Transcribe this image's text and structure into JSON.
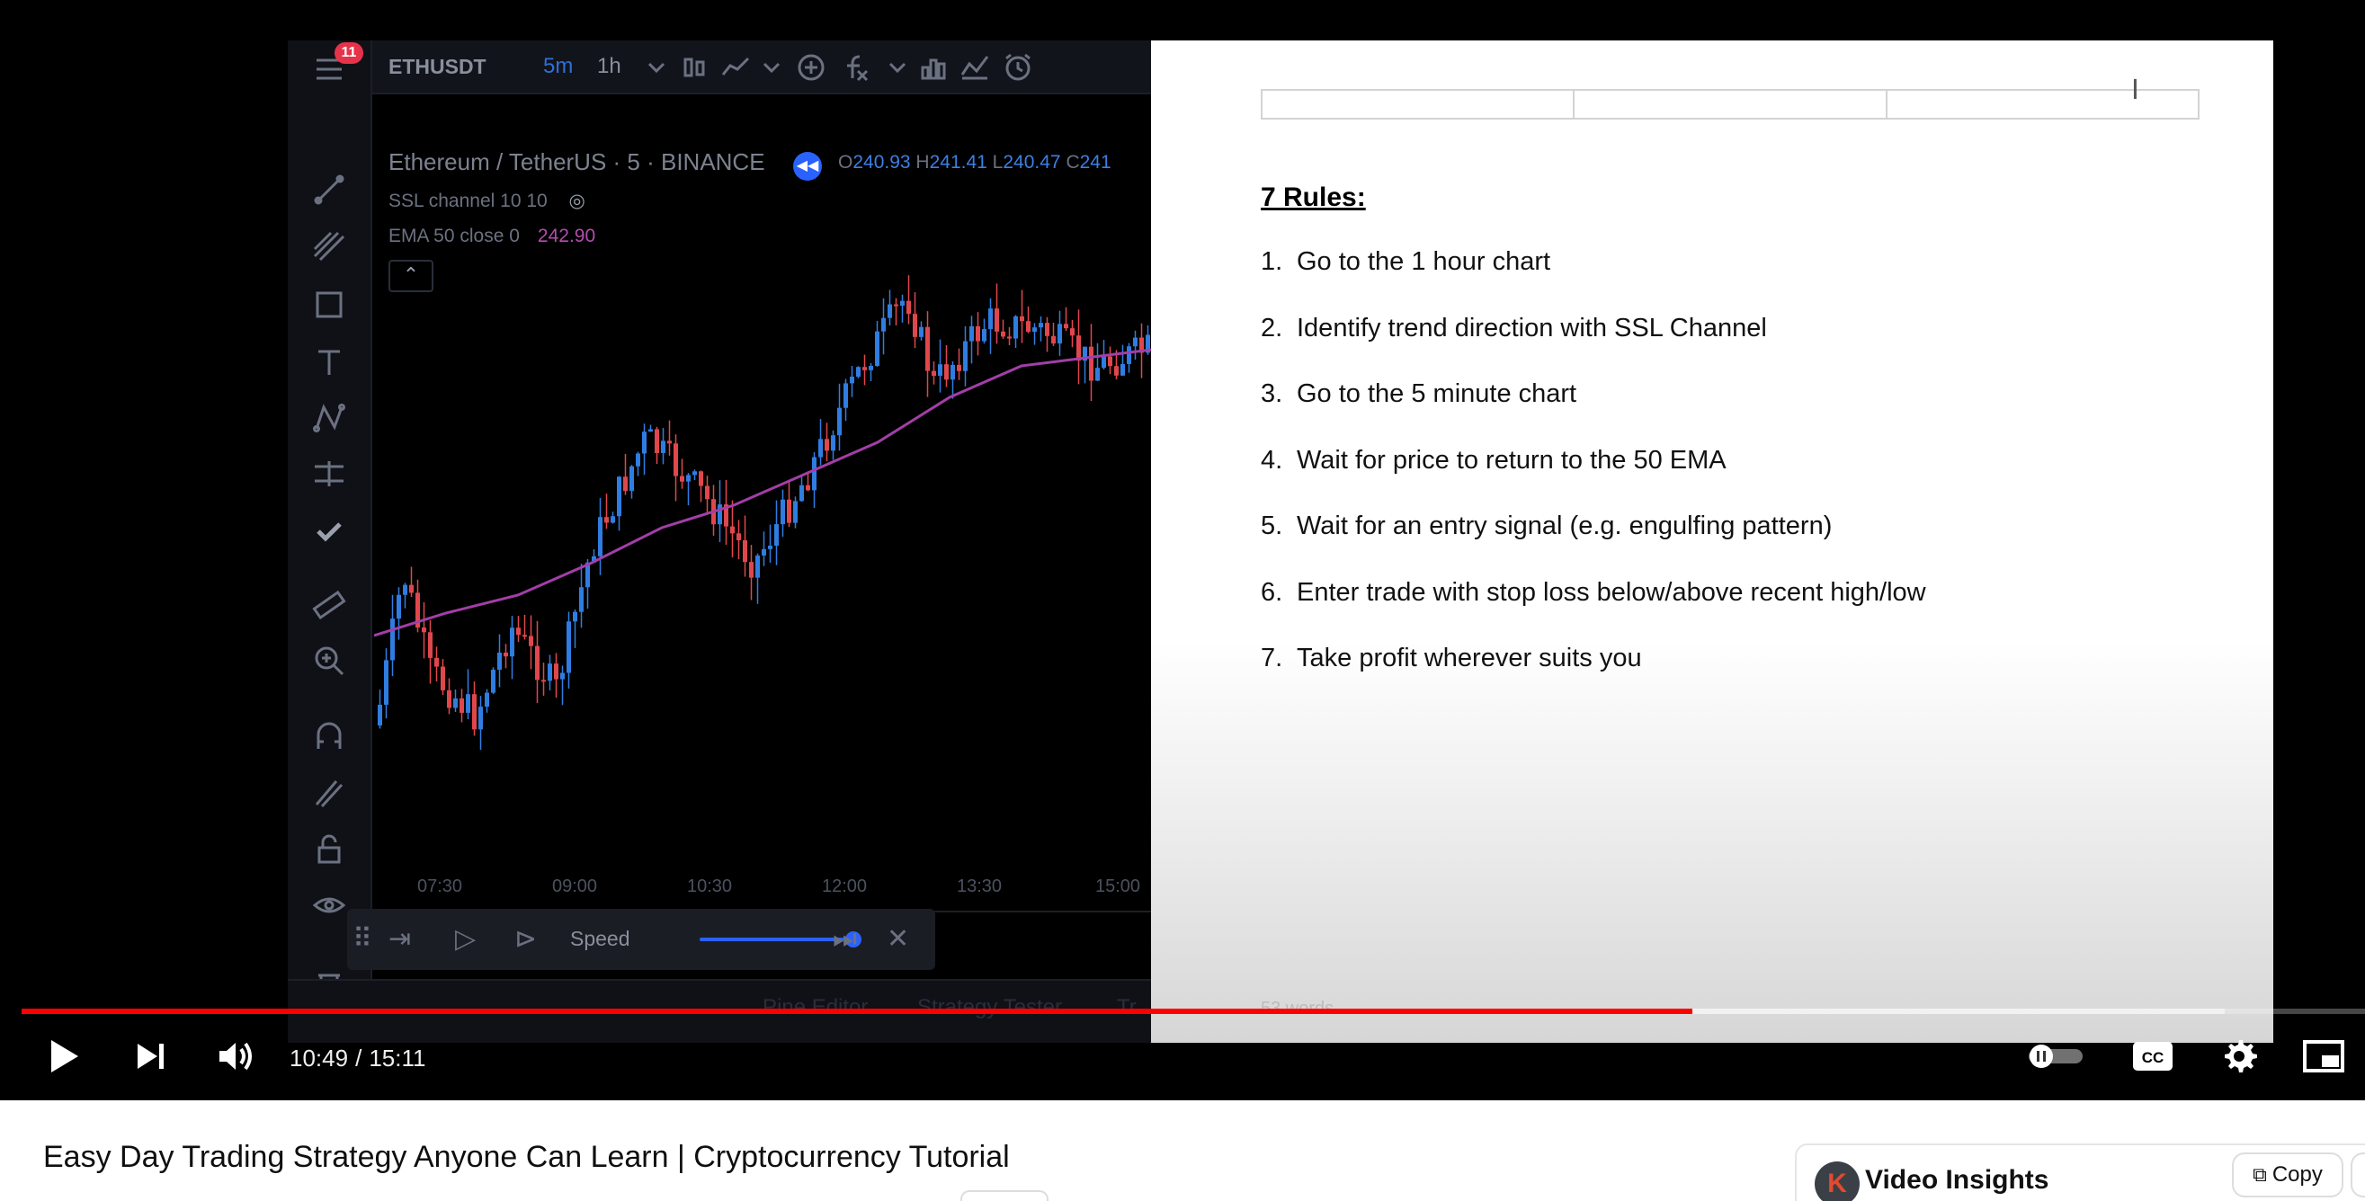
{
  "tradingview": {
    "menu_badge": "11",
    "symbol": "ETHUSDT",
    "intervals": [
      "5m",
      "1h"
    ],
    "legend_main": "Ethereum / TetherUS · 5 · BINANCE",
    "ohlc": {
      "o_key": "O",
      "o": "240.93",
      "h_key": "H",
      "h": "241.41",
      "l_key": "L",
      "l": "240.47",
      "c_key": "C",
      "c": "241"
    },
    "indicator_1": "SSL channel 10 10",
    "indicator_2": "EMA 50 close 0",
    "ema_value": "242.90",
    "time_ticks": [
      "07:30",
      "09:00",
      "10:30",
      "12:00",
      "13:30",
      "15:00"
    ],
    "replay": {
      "speed_label": "Speed",
      "speed_level": 0.95
    },
    "bottom_tabs": [
      "Pine Editor",
      "Strategy Tester",
      "Tr"
    ],
    "colors": {
      "up": "#2f7de1",
      "down": "#e0474c",
      "ema": "#a23ea8"
    }
  },
  "document": {
    "heading": "7 Rules:",
    "rules": [
      {
        "num": "1.",
        "text": "Go to the 1 hour chart"
      },
      {
        "num": "2.",
        "text": "Identify trend direction with SSL Channel"
      },
      {
        "num": "3.",
        "text": "Go to the 5 minute chart"
      },
      {
        "num": "4.",
        "text": "Wait for price to return to the 50 EMA"
      },
      {
        "num": "5.",
        "text": "Wait for an entry signal (e.g. engulfing pattern)"
      },
      {
        "num": "6.",
        "text": "Enter trade with stop loss below/above recent high/low"
      },
      {
        "num": "7.",
        "text": "Take profit wherever suits you"
      }
    ],
    "word_count": "53 words"
  },
  "player": {
    "current_time": "10:49",
    "separator": "/",
    "duration": "15:11",
    "played_fraction": 0.713,
    "buffered_fraction": 0.94,
    "icons": [
      "play-icon",
      "next-icon",
      "volume-icon",
      "autoplay-toggle-icon",
      "captions-icon",
      "settings-icon",
      "miniplayer-icon"
    ],
    "accent": "#ff0000"
  },
  "video": {
    "title": "Easy Day Trading Strategy Anyone Can Learn | Cryptocurrency Tutorial"
  },
  "insights": {
    "logo_letter": "K",
    "title": "Video Insights",
    "copy_label": "Copy"
  }
}
